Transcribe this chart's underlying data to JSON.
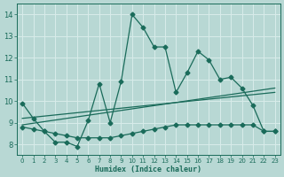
{
  "xlabel": "Humidex (Indice chaleur)",
  "xlim": [
    -0.5,
    23.5
  ],
  "ylim": [
    7.5,
    14.5
  ],
  "yticks": [
    8,
    9,
    10,
    11,
    12,
    13,
    14
  ],
  "xticks": [
    0,
    1,
    2,
    3,
    4,
    5,
    6,
    7,
    8,
    9,
    10,
    11,
    12,
    13,
    14,
    15,
    16,
    17,
    18,
    19,
    20,
    21,
    22,
    23
  ],
  "bg_color": "#b8d8d4",
  "grid_color": "#d8ecea",
  "line_color": "#1a6b5a",
  "line1_x": [
    0,
    1,
    2,
    3,
    4,
    5,
    6,
    7,
    8,
    9,
    10,
    11,
    12,
    13,
    14,
    15,
    16,
    17,
    18,
    19,
    20,
    21,
    22,
    23
  ],
  "line1_y": [
    9.9,
    9.2,
    8.6,
    8.1,
    8.1,
    7.9,
    9.1,
    10.8,
    9.0,
    10.9,
    14.0,
    13.4,
    12.5,
    12.5,
    10.4,
    11.3,
    12.3,
    11.9,
    11.0,
    11.1,
    10.6,
    9.8,
    8.6,
    8.6
  ],
  "line2_x": [
    0,
    1,
    2,
    3,
    4,
    5,
    6,
    7,
    8,
    9,
    10,
    11,
    12,
    13,
    14,
    15,
    16,
    17,
    18,
    19,
    20,
    21,
    22,
    23
  ],
  "line2_y": [
    8.8,
    8.7,
    8.6,
    8.5,
    8.4,
    8.3,
    8.3,
    8.3,
    8.3,
    8.4,
    8.5,
    8.6,
    8.7,
    8.8,
    8.9,
    8.9,
    8.9,
    8.9,
    8.9,
    8.9,
    8.9,
    8.9,
    8.6,
    8.6
  ],
  "line3_x": [
    0,
    23
  ],
  "line3_y": [
    8.9,
    10.6
  ],
  "line4_x": [
    0,
    23
  ],
  "line4_y": [
    9.2,
    10.4
  ]
}
